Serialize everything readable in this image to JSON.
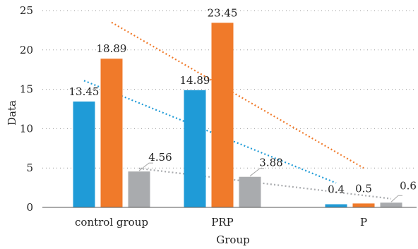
{
  "chart_data": {
    "type": "bar",
    "categories": [
      "control group",
      "PRP",
      "P"
    ],
    "series": [
      {
        "values": [
          13.45,
          14.89,
          0.4
        ],
        "color": "#1f9bd7",
        "labels": [
          "13.45",
          "14.89",
          "0.4"
        ]
      },
      {
        "values": [
          18.89,
          23.45,
          0.5
        ],
        "color": "#f07a2a",
        "labels": [
          "18.89",
          "23.45",
          "0.5"
        ]
      },
      {
        "values": [
          4.56,
          3.88,
          0.6
        ],
        "color": "#a9abae",
        "labels": [
          "4.56",
          "3.88",
          "0.6"
        ]
      }
    ],
    "trendlines": [
      {
        "series_index": 0,
        "start": 16.1,
        "end": 3.1,
        "color": "#1f9bd7"
      },
      {
        "series_index": 1,
        "start": 23.5,
        "end": 5.0,
        "color": "#f07a2a"
      },
      {
        "series_index": 2,
        "start": 4.95,
        "end": 1.1,
        "color": "#a9abae"
      }
    ],
    "xlabel": "Group",
    "ylabel": "Data",
    "ylim": [
      0,
      25
    ],
    "yticks": [
      "0",
      "5",
      "10",
      "15",
      "20",
      "25"
    ],
    "grid": true,
    "legend": "none"
  }
}
